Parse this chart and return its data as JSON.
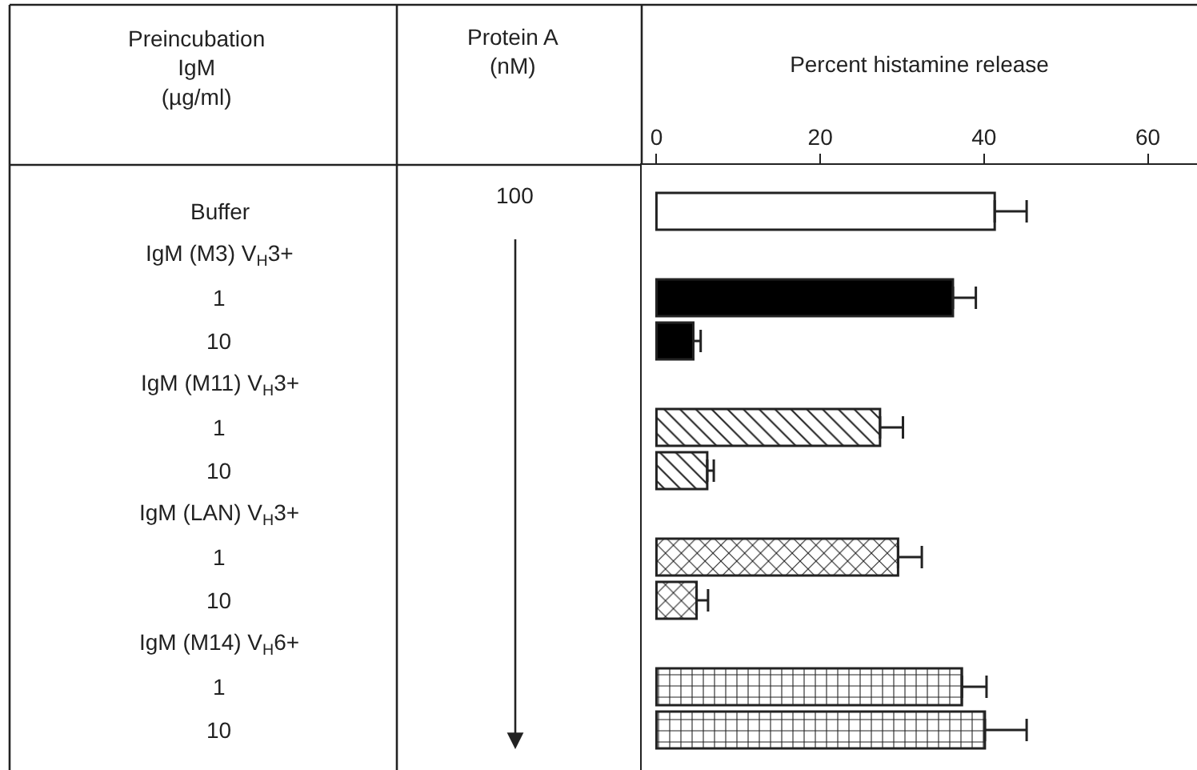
{
  "chart_data": {
    "type": "bar",
    "orientation": "horizontal",
    "x2label": "Percent histamine release",
    "ylabel": "Preincubation\nIgM\n(µg/ml)",
    "annotations": [
      "Protein A\n(nM)",
      "100"
    ],
    "categories": [
      "Buffer",
      "IgM (M3) V$_{H}$3+",
      "1",
      "10",
      "IgM (M11) V$_{H}$3+",
      "1",
      "10",
      "IgM (LAN) V$_{H}$3+",
      "1",
      "10",
      "IgM (M14) V$_{H}$6+",
      "1",
      "10"
    ],
    "series": [
      {
        "axis": "x2",
        "color": "#ffffff",
        "values": [
          41.3,
          null,
          null,
          null,
          null,
          null,
          null,
          null,
          null,
          null,
          null,
          null,
          null
        ],
        "errors": [
          [
            41.3,
            45.2
          ],
          null,
          null,
          null,
          null,
          null,
          null,
          null,
          null,
          null,
          null,
          null,
          null
        ]
      },
      {
        "axis": "x2",
        "color": "#000000",
        "values": [
          null,
          null,
          36.2,
          4.5,
          null,
          null,
          null,
          null,
          null,
          null,
          null,
          null,
          null
        ],
        "errors": [
          null,
          null,
          [
            36.2,
            39.0
          ],
          [
            4.5,
            5.4
          ],
          null,
          null,
          null,
          null,
          null,
          null,
          null,
          null,
          null
        ]
      },
      {
        "axis": "x2",
        "color": "#222222",
        "values": [
          null,
          null,
          null,
          null,
          null,
          27.3,
          6.2,
          null,
          null,
          null,
          null,
          null,
          null
        ],
        "errors": [
          null,
          null,
          null,
          null,
          null,
          [
            27.3,
            30.1
          ],
          [
            6.2,
            7.0
          ],
          null,
          null,
          null,
          null,
          null,
          null
        ]
      },
      {
        "axis": "x2",
        "color": "#222222",
        "values": [
          null,
          null,
          null,
          null,
          null,
          null,
          null,
          null,
          29.5,
          4.9,
          null,
          null,
          null
        ],
        "errors": [
          null,
          null,
          null,
          null,
          null,
          null,
          null,
          null,
          [
            29.5,
            32.4
          ],
          [
            4.9,
            6.3
          ],
          null,
          null,
          null
        ]
      },
      {
        "axis": "x2",
        "color": "#222222",
        "values": [
          null,
          null,
          null,
          null,
          null,
          null,
          null,
          null,
          null,
          null,
          null,
          37.3,
          40.1
        ],
        "errors": [
          null,
          null,
          null,
          null,
          null,
          null,
          null,
          null,
          null,
          null,
          null,
          [
            37.3,
            40.3
          ],
          [
            40.1,
            45.2
          ]
        ]
      }
    ],
    "x2lim": [
      -1.8,
      66
    ],
    "x2ticks": [
      0,
      20,
      40,
      60
    ]
  }
}
